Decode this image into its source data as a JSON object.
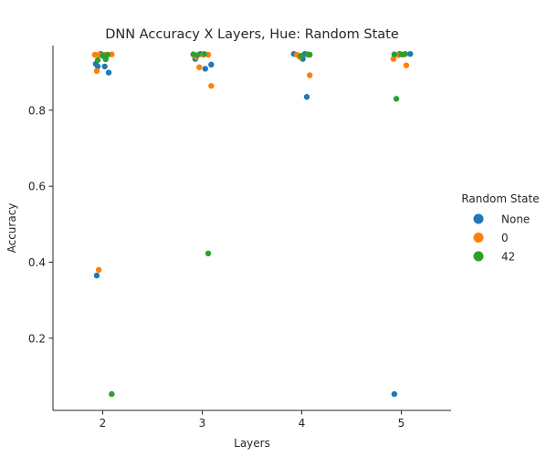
{
  "chart_data": {
    "type": "scatter",
    "title": "DNN Accuracy X Layers, Hue: Random State",
    "xlabel": "Layers",
    "ylabel": "Accuracy",
    "categories": [
      "2",
      "3",
      "4",
      "5"
    ],
    "xlim": [
      1.5,
      5.5
    ],
    "ylim": [
      0.01,
      0.97
    ],
    "yticks": [
      0.2,
      0.4,
      0.6,
      0.8
    ],
    "ytick_labels": [
      "0.2",
      "0.4",
      "0.6",
      "0.8"
    ],
    "grid": false,
    "legend": {
      "title": "Random State",
      "placement": "right"
    },
    "series": [
      {
        "name": "None",
        "color": "#1f77b4",
        "points": [
          {
            "x": 1.93,
            "y": 0.922
          },
          {
            "x": 1.95,
            "y": 0.915
          },
          {
            "x": 1.98,
            "y": 0.948
          },
          {
            "x": 2.02,
            "y": 0.915
          },
          {
            "x": 2.06,
            "y": 0.899
          },
          {
            "x": 2.04,
            "y": 0.945
          },
          {
            "x": 1.94,
            "y": 0.365
          },
          {
            "x": 2.93,
            "y": 0.935
          },
          {
            "x": 2.98,
            "y": 0.948
          },
          {
            "x": 3.03,
            "y": 0.909
          },
          {
            "x": 3.09,
            "y": 0.92
          },
          {
            "x": 3.92,
            "y": 0.948
          },
          {
            "x": 4.01,
            "y": 0.935
          },
          {
            "x": 4.03,
            "y": 0.948
          },
          {
            "x": 4.05,
            "y": 0.835
          },
          {
            "x": 4.93,
            "y": 0.053
          },
          {
            "x": 4.98,
            "y": 0.948
          },
          {
            "x": 5.09,
            "y": 0.948
          }
        ]
      },
      {
        "name": "0",
        "color": "#ff7f0e",
        "points": [
          {
            "x": 1.92,
            "y": 0.946
          },
          {
            "x": 1.96,
            "y": 0.946
          },
          {
            "x": 1.94,
            "y": 0.903
          },
          {
            "x": 2.02,
            "y": 0.946
          },
          {
            "x": 2.09,
            "y": 0.947
          },
          {
            "x": 1.96,
            "y": 0.38
          },
          {
            "x": 2.94,
            "y": 0.94
          },
          {
            "x": 2.97,
            "y": 0.913
          },
          {
            "x": 3.01,
            "y": 0.946
          },
          {
            "x": 3.06,
            "y": 0.946
          },
          {
            "x": 3.09,
            "y": 0.864
          },
          {
            "x": 3.95,
            "y": 0.946
          },
          {
            "x": 3.98,
            "y": 0.94
          },
          {
            "x": 4.06,
            "y": 0.946
          },
          {
            "x": 4.08,
            "y": 0.892
          },
          {
            "x": 4.92,
            "y": 0.935
          },
          {
            "x": 4.97,
            "y": 0.945
          },
          {
            "x": 5.02,
            "y": 0.946
          },
          {
            "x": 5.05,
            "y": 0.918
          }
        ]
      },
      {
        "name": "42",
        "color": "#2ca02c",
        "points": [
          {
            "x": 1.95,
            "y": 0.932
          },
          {
            "x": 2.0,
            "y": 0.943
          },
          {
            "x": 2.03,
            "y": 0.934
          },
          {
            "x": 2.05,
            "y": 0.946
          },
          {
            "x": 2.09,
            "y": 0.053
          },
          {
            "x": 2.91,
            "y": 0.947
          },
          {
            "x": 2.95,
            "y": 0.945
          },
          {
            "x": 3.02,
            "y": 0.948
          },
          {
            "x": 3.06,
            "y": 0.423
          },
          {
            "x": 3.99,
            "y": 0.943
          },
          {
            "x": 4.06,
            "y": 0.947
          },
          {
            "x": 4.08,
            "y": 0.946
          },
          {
            "x": 4.93,
            "y": 0.947
          },
          {
            "x": 4.95,
            "y": 0.83
          },
          {
            "x": 5.0,
            "y": 0.947
          },
          {
            "x": 5.04,
            "y": 0.948
          }
        ]
      }
    ]
  }
}
